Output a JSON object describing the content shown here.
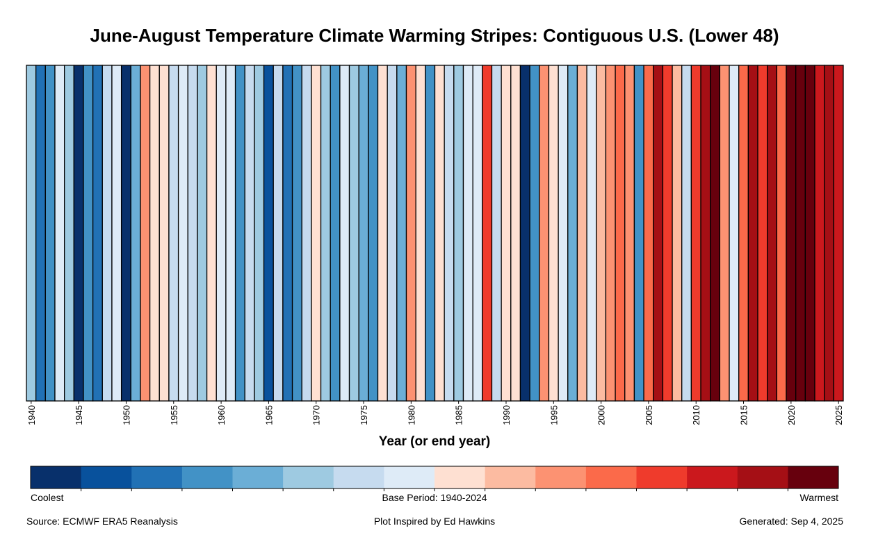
{
  "chart_data": {
    "type": "heatmap",
    "title": "June-August Temperature Climate Warming Stripes: Contiguous U.S. (Lower 48)",
    "xlabel": "Year (or end year)",
    "x_start": 1940,
    "x_end": 2025,
    "tick_labels": [
      "1940",
      "1945",
      "1950",
      "1955",
      "1960",
      "1965",
      "1970",
      "1975",
      "1980",
      "1985",
      "1990",
      "1995",
      "2000",
      "2005",
      "2010",
      "2015",
      "2020",
      "2025"
    ],
    "colormap": [
      "#08306b",
      "#08519c",
      "#2171b5",
      "#4292c6",
      "#6baed6",
      "#9ecae1",
      "#c6dbef",
      "#deebf7",
      "#fee0d2",
      "#fcbba1",
      "#fc9272",
      "#fb6a4a",
      "#ef3b2c",
      "#cb181d",
      "#a50f15",
      "#67000d"
    ],
    "color_bins": [
      5,
      2,
      3,
      7,
      5,
      0,
      3,
      2,
      6,
      7,
      0,
      4,
      10,
      8,
      8,
      6,
      7,
      6,
      5,
      8,
      7,
      7,
      3,
      6,
      5,
      1,
      6,
      2,
      3,
      6,
      8,
      5,
      3,
      7,
      5,
      4,
      3,
      8,
      6,
      4,
      10,
      8,
      3,
      8,
      6,
      5,
      7,
      7,
      12,
      6,
      8,
      8,
      0,
      3,
      10,
      8,
      7,
      4,
      9,
      7,
      9,
      10,
      11,
      10,
      3,
      11,
      14,
      12,
      9,
      6,
      12,
      14,
      15,
      10,
      7,
      11,
      14,
      12,
      14,
      11,
      15,
      15,
      15,
      13,
      14,
      13
    ],
    "colorbar": {
      "low_label": "Coolest",
      "mid_label": "Base Period: 1940-2024",
      "high_label": "Warmest"
    },
    "grid": false
  },
  "footer": {
    "source": "Source: ECMWF ERA5 Reanalysis",
    "credit": "Plot Inspired by Ed Hawkins",
    "generated": "Generated: Sep 4, 2025"
  }
}
